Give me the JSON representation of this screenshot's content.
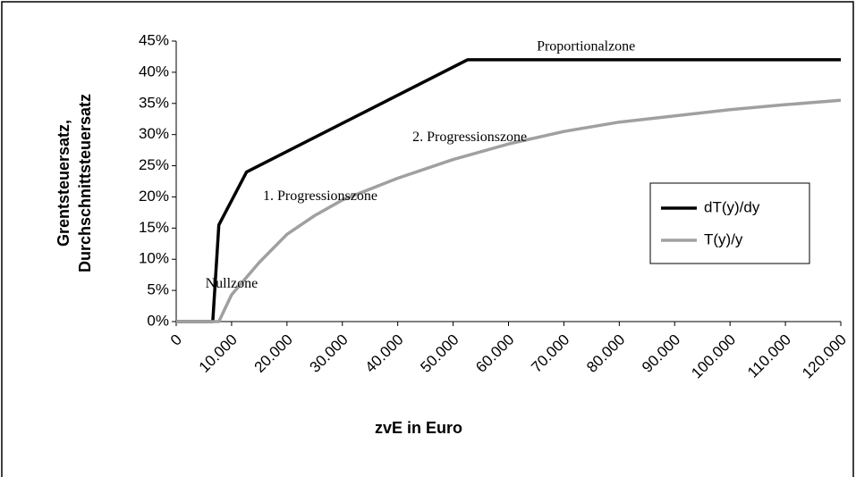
{
  "chart_data": {
    "type": "line",
    "xlabel": "zvE in Euro",
    "ylabel": [
      "Grentsteuersatz,",
      "Durchschnittsteuersatz"
    ],
    "xlim": [
      0,
      120000
    ],
    "xticks": [
      0,
      {
        "value": 10000,
        "label": "10.000"
      },
      {
        "value": 20000,
        "label": "20.000"
      },
      {
        "value": 30000,
        "label": "30.000"
      },
      {
        "value": 40000,
        "label": "40.000"
      },
      {
        "value": 50000,
        "label": "50.000"
      },
      {
        "value": 60000,
        "label": "60.000"
      },
      {
        "value": 70000,
        "label": "70.000"
      },
      {
        "value": 80000,
        "label": "80.000"
      },
      {
        "value": 90000,
        "label": "90.000"
      },
      {
        "value": 100000,
        "label": "100.000"
      },
      {
        "value": 110000,
        "label": "110.000"
      },
      {
        "value": 120000,
        "label": "120.000"
      }
    ],
    "ylim": [
      0,
      45
    ],
    "yticks": [
      {
        "value": 0,
        "label": "0%"
      },
      {
        "value": 5,
        "label": "5%"
      },
      {
        "value": 10,
        "label": "10%"
      },
      {
        "value": 15,
        "label": "15%"
      },
      {
        "value": 20,
        "label": "20%"
      },
      {
        "value": 25,
        "label": "25%"
      },
      {
        "value": 30,
        "label": "30%"
      },
      {
        "value": 35,
        "label": "35%"
      },
      {
        "value": 40,
        "label": "40%"
      },
      {
        "value": 45,
        "label": "45%"
      }
    ],
    "series": [
      {
        "name": "dT(y)/dy",
        "color": "#000000",
        "x": [
          0,
          6600,
          7700,
          12700,
          52600,
          120000
        ],
        "values": [
          0,
          0,
          15.5,
          24,
          42,
          42
        ]
      },
      {
        "name": "T(y)/y",
        "color": "#a0a0a0",
        "x": [
          0,
          7700,
          10000,
          15000,
          20000,
          25000,
          30000,
          40000,
          50000,
          60000,
          70000,
          80000,
          90000,
          100000,
          110000,
          120000
        ],
        "values": [
          0,
          0,
          4.3,
          9.5,
          14,
          17,
          19.5,
          23,
          26,
          28.5,
          30.5,
          32,
          33,
          34,
          34.8,
          35.5
        ]
      }
    ],
    "legend": "right",
    "annotations": [
      {
        "text": "Proportionalzone",
        "x": 74000,
        "y": 44
      },
      {
        "text": "2. Progressionszone",
        "x": 53000,
        "y": 29.5
      },
      {
        "text": "1. Progressionszone",
        "x": 26000,
        "y": 20
      },
      {
        "text": "Nullzone",
        "x": 10000,
        "y": 6
      }
    ]
  }
}
